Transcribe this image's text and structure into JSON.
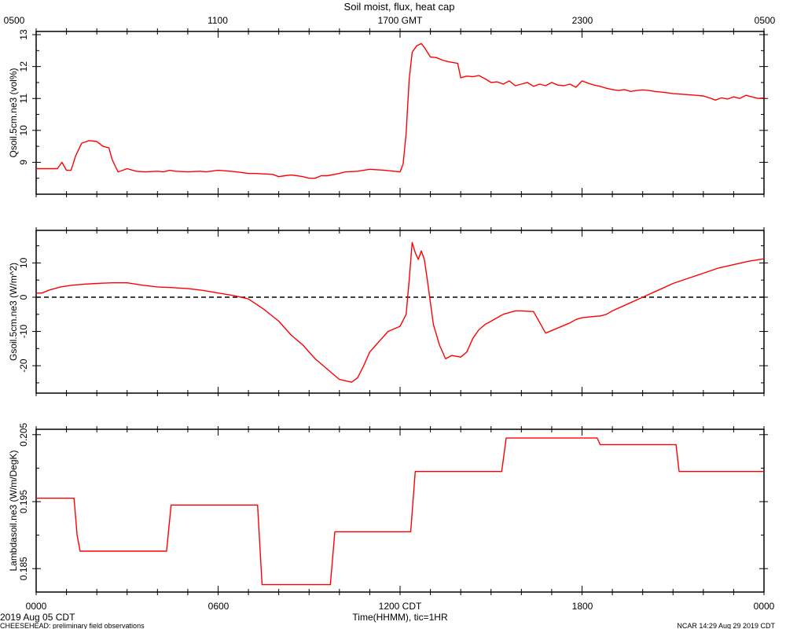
{
  "page": {
    "title": "Soil moist, flux, heat cap",
    "top_axis_ticks": [
      "0500",
      "1100",
      "1700 GMT",
      "2300",
      "0500"
    ],
    "bottom_axis_ticks": [
      "0000",
      "0600",
      "1200 CDT",
      "1800",
      "0000"
    ],
    "xlabel": "Time(HHMM), tic=1HR",
    "date_label": "2019 Aug 05 CDT",
    "footer_left": "CHEESEHEAD: preliminary field observations",
    "footer_right": "NCAR 14:29 Aug 29 2019 CDT"
  },
  "chart_data": [
    {
      "type": "line",
      "ylabel": "Qsoil.5cm.ne3 (vol%)",
      "xlim": [
        0,
        24
      ],
      "ylim": [
        8.0,
        13.1
      ],
      "yticks": [
        9,
        10,
        11,
        12,
        13
      ],
      "line_color": "#ff0000",
      "series": [
        {
          "x": [
            0,
            0.4,
            0.7,
            0.85,
            1.0,
            1.15,
            1.3,
            1.5,
            1.75,
            2.0,
            2.2,
            2.4,
            2.5,
            2.6,
            2.7,
            2.85,
            3.0,
            3.3,
            3.6,
            4.0,
            4.2,
            4.4,
            4.6,
            5.0,
            5.4,
            5.6,
            6.0,
            6.4,
            6.6,
            7.0,
            7.2,
            7.8,
            8.0,
            8.2,
            8.4,
            8.6,
            8.8,
            9.0,
            9.2,
            9.4,
            9.6,
            10.0,
            10.2,
            10.6,
            11.0,
            11.5,
            11.8,
            12.0,
            12.1,
            12.2,
            12.3,
            12.4,
            12.55,
            12.7,
            12.8,
            13.0,
            13.2,
            13.4,
            13.6,
            13.9,
            14.0,
            14.2,
            14.4,
            14.6,
            14.8,
            15.0,
            15.2,
            15.4,
            15.6,
            15.8,
            16.0,
            16.2,
            16.4,
            16.6,
            16.8,
            17.0,
            17.2,
            17.4,
            17.6,
            17.8,
            18.0,
            18.2,
            18.4,
            18.6,
            18.8,
            19.0,
            19.2,
            19.4,
            19.6,
            19.8,
            20.0,
            20.2,
            20.4,
            20.6,
            20.8,
            21.0,
            21.5,
            22.0,
            22.2,
            22.4,
            22.6,
            22.8,
            23.0,
            23.2,
            23.4,
            23.6,
            23.8,
            24.0
          ],
          "y": [
            8.8,
            8.8,
            8.8,
            9.0,
            8.75,
            8.75,
            9.2,
            9.6,
            9.68,
            9.65,
            9.5,
            9.45,
            9.1,
            8.9,
            8.7,
            8.75,
            8.8,
            8.72,
            8.7,
            8.72,
            8.7,
            8.75,
            8.72,
            8.7,
            8.72,
            8.7,
            8.75,
            8.72,
            8.7,
            8.65,
            8.65,
            8.62,
            8.55,
            8.58,
            8.6,
            8.58,
            8.55,
            8.5,
            8.5,
            8.58,
            8.58,
            8.65,
            8.7,
            8.72,
            8.78,
            8.75,
            8.72,
            8.7,
            8.95,
            9.9,
            11.6,
            12.45,
            12.65,
            12.72,
            12.6,
            12.3,
            12.28,
            12.2,
            12.15,
            12.1,
            11.65,
            11.7,
            11.68,
            11.72,
            11.62,
            11.5,
            11.52,
            11.45,
            11.55,
            11.4,
            11.45,
            11.5,
            11.38,
            11.45,
            11.4,
            11.5,
            11.42,
            11.4,
            11.45,
            11.35,
            11.55,
            11.48,
            11.42,
            11.38,
            11.32,
            11.28,
            11.25,
            11.28,
            11.22,
            11.25,
            11.27,
            11.25,
            11.22,
            11.2,
            11.18,
            11.15,
            11.12,
            11.08,
            11.02,
            10.95,
            11.02,
            10.98,
            11.05,
            11.0,
            11.1,
            11.05,
            11.0,
            11.02
          ]
        }
      ]
    },
    {
      "type": "line",
      "ylabel": "Gsoil.5cm.ne3 (W/m^2)",
      "xlim": [
        0,
        24
      ],
      "ylim": [
        -28,
        19.5
      ],
      "yticks": [
        -20,
        -10,
        0,
        10
      ],
      "zero_line": "dashed",
      "line_color": "#ff0000",
      "series": [
        {
          "x": [
            0,
            0.2,
            0.4,
            0.8,
            1.2,
            1.6,
            2.0,
            2.5,
            3.0,
            3.5,
            4.0,
            4.5,
            5.0,
            5.5,
            6.0,
            6.5,
            7.0,
            7.5,
            8.0,
            8.4,
            8.8,
            9.2,
            9.6,
            10.0,
            10.4,
            10.6,
            10.8,
            11.0,
            11.2,
            11.4,
            11.6,
            12.0,
            12.2,
            12.3,
            12.4,
            12.5,
            12.6,
            12.7,
            12.8,
            12.9,
            13.1,
            13.3,
            13.5,
            13.7,
            14.0,
            14.2,
            14.4,
            14.6,
            14.8,
            15.0,
            15.2,
            15.4,
            15.6,
            15.8,
            16.0,
            16.4,
            16.8,
            17.2,
            17.6,
            17.8,
            18.0,
            18.2,
            18.4,
            18.6,
            18.8,
            19.0,
            19.5,
            20.0,
            20.5,
            21.0,
            21.5,
            22.0,
            22.5,
            23.0,
            23.5,
            24.0
          ],
          "y": [
            1.2,
            1.2,
            2.0,
            3.0,
            3.5,
            3.8,
            4.0,
            4.2,
            4.2,
            3.5,
            3.0,
            2.8,
            2.5,
            2.0,
            1.2,
            0.5,
            -0.5,
            -3.5,
            -7,
            -11,
            -14,
            -18,
            -21,
            -24,
            -24.8,
            -23.5,
            -20,
            -16,
            -14,
            -12,
            -10,
            -8.5,
            -5,
            5,
            16,
            13,
            11,
            13.5,
            11,
            5,
            -8,
            -14,
            -18,
            -17,
            -17.5,
            -16,
            -12,
            -9.5,
            -8,
            -7,
            -6,
            -5,
            -4.5,
            -4,
            -4,
            -4.2,
            -10.5,
            -9,
            -7.5,
            -6.5,
            -6,
            -5.8,
            -5.6,
            -5.5,
            -5,
            -4,
            -2,
            0,
            2,
            4,
            5.5,
            7,
            8.5,
            9.5,
            10.5,
            11.2
          ]
        }
      ]
    },
    {
      "type": "line",
      "ylabel": "Lambdasoil.ne3 (W/m/DegK)",
      "xlim": [
        0,
        24
      ],
      "ylim": [
        0.1815,
        0.2058
      ],
      "yticks": [
        0.185,
        0.195,
        0.205
      ],
      "line_color": "#ff0000",
      "series": [
        {
          "x": [
            0,
            1.25,
            1.35,
            1.45,
            4.3,
            4.45,
            7.3,
            7.45,
            9.7,
            9.85,
            12.35,
            12.5,
            15.35,
            15.5,
            18.5,
            18.6,
            21.1,
            21.2,
            24.0
          ],
          "y": [
            0.1955,
            0.1955,
            0.19,
            0.1876,
            0.1876,
            0.1945,
            0.1945,
            0.1826,
            0.1826,
            0.1905,
            0.1905,
            0.1995,
            0.1995,
            0.2045,
            0.2045,
            0.2035,
            0.2035,
            0.1995,
            0.1995
          ]
        }
      ]
    }
  ]
}
